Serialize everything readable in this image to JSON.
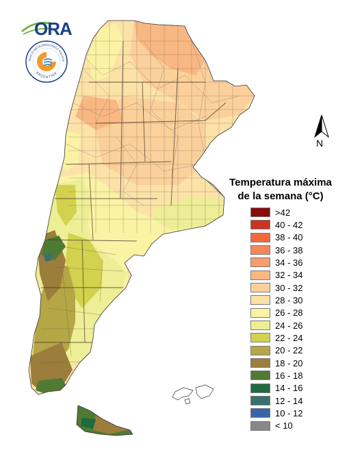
{
  "logo": {
    "text": "ORA"
  },
  "seal": {
    "top_text": "SERVICIO METEOROLÓGICO NACIONAL",
    "bottom_text": "ARGENTINA",
    "colors": {
      "ring": "#1b3f8a",
      "orange": "#f29a2e",
      "blue": "#3a8fd0"
    }
  },
  "north_arrow": {
    "label": "N",
    "icon": "north-arrow-icon"
  },
  "legend": {
    "title_line1": "Temperatura máxima",
    "title_line2": "de la semana (°C)",
    "items": [
      {
        "label": ">42",
        "color": "#8b0a0a"
      },
      {
        "label": "40 - 42",
        "color": "#cc3322"
      },
      {
        "label": "38 - 40",
        "color": "#f26a3a"
      },
      {
        "label": "36 - 38",
        "color": "#f6875a"
      },
      {
        "label": "34 - 36",
        "color": "#f89c6c"
      },
      {
        "label": "32 - 34",
        "color": "#f9b883"
      },
      {
        "label": "30 - 32",
        "color": "#fbd09b"
      },
      {
        "label": "28 - 30",
        "color": "#fde2a8"
      },
      {
        "label": "26 - 28",
        "color": "#fbf3a4"
      },
      {
        "label": "24 - 26",
        "color": "#eeee96"
      },
      {
        "label": "22 - 24",
        "color": "#d2d24e"
      },
      {
        "label": "20 - 22",
        "color": "#b5a646"
      },
      {
        "label": "18 - 20",
        "color": "#9b7d3c"
      },
      {
        "label": "16 - 18",
        "color": "#4f7a34"
      },
      {
        "label": "14 - 16",
        "color": "#1d6b3e"
      },
      {
        "label": "12 - 14",
        "color": "#3a7070"
      },
      {
        "label": "10 - 12",
        "color": "#3567a8"
      },
      {
        "label": "< 10",
        "color": "#888888"
      }
    ]
  }
}
